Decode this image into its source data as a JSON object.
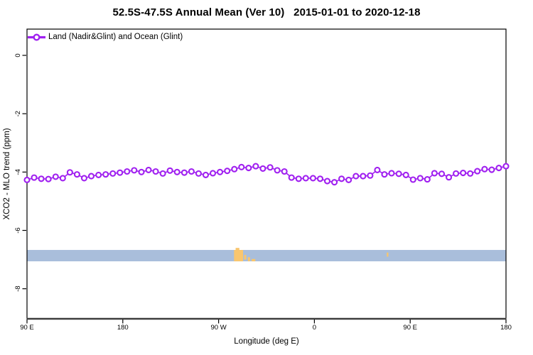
{
  "title": "52.5S-47.5S Annual Mean (Ver 10)   2015-01-01 to 2020-12-18",
  "legend": {
    "label": "Land (Nadir&Glint) and Ocean (Glint)",
    "position": "top-left"
  },
  "axes": {
    "x_label": "Longitude (deg E)",
    "y_label": "XCO2 - MLO trend (ppm)",
    "x_ticks": [
      {
        "v": 90,
        "label": "90 E"
      },
      {
        "v": 180,
        "label": "180"
      },
      {
        "v": 270,
        "label": "90 W"
      },
      {
        "v": 360,
        "label": "0"
      },
      {
        "v": 450,
        "label": "90 E"
      },
      {
        "v": 540,
        "label": "180"
      }
    ],
    "y_ticks": [
      {
        "v": 0,
        "label": "0"
      },
      {
        "v": -2,
        "label": "-2"
      },
      {
        "v": -4,
        "label": "-4"
      },
      {
        "v": -6,
        "label": "-6"
      },
      {
        "v": -8,
        "label": "-8"
      }
    ],
    "xlim": [
      90,
      540
    ],
    "ylim": [
      -9.03,
      0.9
    ]
  },
  "colors": {
    "series": "#A020F0",
    "marker_fill": "#ffffff",
    "ocean_band": "#A9BEDB",
    "land_band": "#F9C66E",
    "axis": "#000000",
    "background": "#ffffff"
  },
  "chart_data": {
    "type": "line",
    "title": "52.5S-47.5S Annual Mean (Ver 10)   2015-01-01 to 2020-12-18",
    "xlabel": "Longitude (deg E)",
    "ylabel": "XCO2 - MLO trend (ppm)",
    "xlim": [
      90,
      540
    ],
    "ylim": [
      -9.03,
      0.9
    ],
    "grid": false,
    "legend_position": "top-left",
    "x_tick_labels": [
      "90 E",
      "180",
      "90 W",
      "0",
      "90 E",
      "180"
    ],
    "y_tick_labels": [
      "0",
      "-2",
      "-4",
      "-6",
      "-8"
    ],
    "series": [
      {
        "name": "Land (Nadir&Glint) and Ocean (Glint)",
        "color": "#A020F0",
        "marker": "open-circle",
        "x": [
          90.0,
          96.7,
          103.4,
          110.1,
          116.9,
          123.6,
          130.3,
          137.0,
          143.7,
          150.4,
          157.2,
          163.9,
          170.6,
          177.3,
          184.0,
          190.7,
          197.5,
          204.2,
          210.9,
          217.6,
          224.3,
          231.0,
          237.8,
          244.5,
          251.2,
          257.9,
          264.6,
          271.3,
          278.1,
          284.8,
          291.5,
          298.2,
          304.9,
          311.6,
          318.4,
          325.1,
          331.8,
          338.5,
          345.2,
          351.9,
          358.7,
          365.4,
          372.1,
          378.8,
          385.5,
          392.2,
          399.0,
          405.7,
          412.4,
          419.1,
          425.8,
          432.5,
          439.3,
          446.0,
          452.7,
          459.4,
          466.1,
          472.8,
          479.6,
          486.3,
          493.0,
          499.7,
          506.4,
          513.1,
          519.9,
          526.6,
          533.3,
          540.0
        ],
        "y": [
          -4.27,
          -4.19,
          -4.23,
          -4.24,
          -4.16,
          -4.21,
          -4.01,
          -4.08,
          -4.21,
          -4.14,
          -4.1,
          -4.08,
          -4.05,
          -4.02,
          -3.98,
          -3.94,
          -4.0,
          -3.93,
          -3.98,
          -4.05,
          -3.95,
          -4.0,
          -4.02,
          -3.98,
          -4.05,
          -4.1,
          -4.04,
          -4.0,
          -3.96,
          -3.9,
          -3.83,
          -3.86,
          -3.8,
          -3.88,
          -3.84,
          -3.94,
          -3.98,
          -4.19,
          -4.23,
          -4.21,
          -4.21,
          -4.23,
          -4.31,
          -4.35,
          -4.23,
          -4.27,
          -4.14,
          -4.14,
          -4.12,
          -3.93,
          -4.08,
          -4.04,
          -4.06,
          -4.1,
          -4.26,
          -4.21,
          -4.25,
          -4.04,
          -4.06,
          -4.18,
          -4.05,
          -4.03,
          -4.05,
          -3.97,
          -3.9,
          -3.92,
          -3.86,
          -3.8
        ]
      }
    ],
    "surface_band": {
      "description": "ocean/land indicator strip",
      "ocean": {
        "x_from": 90,
        "x_to": 540,
        "y_from": -6.67,
        "y_to": -7.06,
        "color": "#A9BEDB"
      },
      "land_marks": [
        {
          "x_from": 284.5,
          "x_to": 293.0,
          "y_from": -6.67,
          "y_to": -7.06
        },
        {
          "x_from": 286.0,
          "x_to": 289.5,
          "y_from": -6.6,
          "y_to": -6.67
        },
        {
          "x_from": 294.0,
          "x_to": 296.0,
          "y_from": -6.84,
          "y_to": -7.0
        },
        {
          "x_from": 297.5,
          "x_to": 299.5,
          "y_from": -6.92,
          "y_to": -7.06
        },
        {
          "x_from": 301.0,
          "x_to": 304.5,
          "y_from": -6.98,
          "y_to": -7.06
        },
        {
          "x_from": 428.0,
          "x_to": 429.5,
          "y_from": -6.76,
          "y_to": -6.9
        }
      ],
      "land_color": "#F9C66E"
    }
  }
}
